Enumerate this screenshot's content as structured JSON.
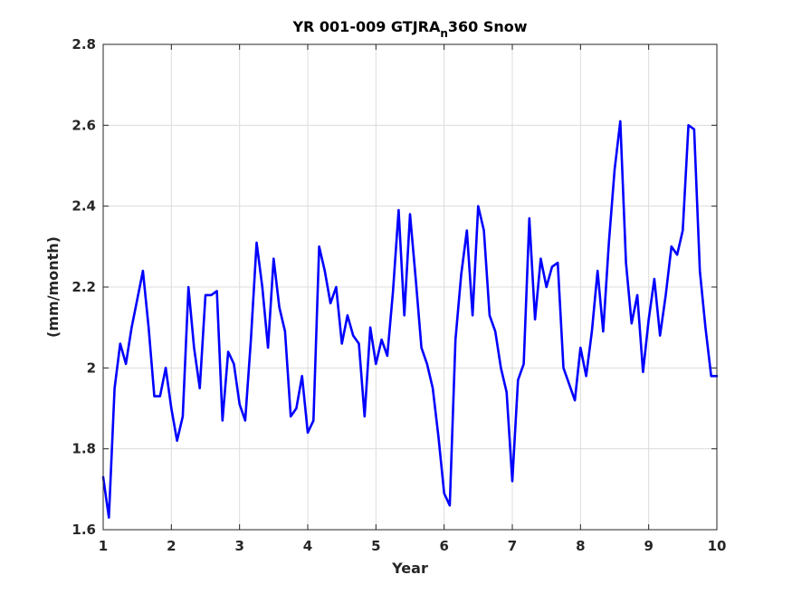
{
  "chart_data": {
    "type": "line",
    "title": "YR 001-009 GTJRA",
    "title_subscript": "n",
    "title_suffix": "360 Snow",
    "xlabel": "Year",
    "ylabel": "(mm/month)",
    "xlim": [
      1,
      10
    ],
    "ylim": [
      1.6,
      2.8
    ],
    "xticks": [
      1,
      2,
      3,
      4,
      5,
      6,
      7,
      8,
      9,
      10
    ],
    "xtick_labels": [
      "1",
      "2",
      "3",
      "4",
      "5",
      "6",
      "7",
      "8",
      "9",
      "10"
    ],
    "yticks": [
      1.6,
      1.8,
      2.0,
      2.2,
      2.4,
      2.6,
      2.8
    ],
    "ytick_labels": [
      "1.6",
      "1.8",
      "2",
      "2.2",
      "2.4",
      "2.6",
      "2.8"
    ],
    "grid": true,
    "line_color": "#0000ff",
    "series": [
      {
        "x": [
          1.0,
          1.083,
          1.167,
          1.25,
          1.333,
          1.417,
          1.5,
          1.583,
          1.667,
          1.75,
          1.833,
          1.917,
          2.0,
          2.083,
          2.167,
          2.25,
          2.333,
          2.417,
          2.5,
          2.583,
          2.667,
          2.75,
          2.833,
          2.917,
          3.0,
          3.083,
          3.167,
          3.25,
          3.333,
          3.417,
          3.5,
          3.583,
          3.667,
          3.75,
          3.833,
          3.917,
          4.0,
          4.083,
          4.167,
          4.25,
          4.333,
          4.417,
          4.5,
          4.583,
          4.667,
          4.75,
          4.833,
          4.917,
          5.0,
          5.083,
          5.167,
          5.25,
          5.333,
          5.417,
          5.5,
          5.583,
          5.667,
          5.75,
          5.833,
          5.917,
          6.0,
          6.083,
          6.167,
          6.25,
          6.333,
          6.417,
          6.5,
          6.583,
          6.667,
          6.75,
          6.833,
          6.917,
          7.0,
          7.083,
          7.167,
          7.25,
          7.333,
          7.417,
          7.5,
          7.583,
          7.667,
          7.75,
          7.833,
          7.917,
          8.0,
          8.083,
          8.167,
          8.25,
          8.333,
          8.417,
          8.5,
          8.583,
          8.667,
          8.75,
          8.833,
          8.917,
          9.0,
          9.083,
          9.167,
          9.25,
          9.333,
          9.417,
          9.5,
          9.583,
          9.667,
          9.75,
          9.833,
          9.917,
          10.0
        ],
        "y": [
          1.73,
          1.63,
          1.95,
          2.06,
          2.01,
          2.1,
          2.17,
          2.24,
          2.1,
          1.93,
          1.93,
          2.0,
          1.9,
          1.82,
          1.88,
          2.2,
          2.05,
          1.95,
          2.18,
          2.18,
          2.19,
          1.87,
          2.04,
          2.01,
          1.91,
          1.87,
          2.07,
          2.31,
          2.2,
          2.05,
          2.27,
          2.15,
          2.09,
          1.88,
          1.9,
          1.98,
          1.84,
          1.87,
          2.3,
          2.24,
          2.16,
          2.2,
          2.06,
          2.13,
          2.08,
          2.06,
          1.88,
          2.1,
          2.01,
          2.07,
          2.03,
          2.19,
          2.39,
          2.13,
          2.38,
          2.22,
          2.05,
          2.01,
          1.95,
          1.83,
          1.69,
          1.66,
          2.07,
          2.23,
          2.34,
          2.13,
          2.4,
          2.34,
          2.13,
          2.09,
          2.0,
          1.94,
          1.72,
          1.97,
          2.01,
          2.37,
          2.12,
          2.27,
          2.2,
          2.25,
          2.26,
          2.0,
          1.96,
          1.92,
          2.05,
          1.98,
          2.09,
          2.24,
          2.09,
          2.31,
          2.49,
          2.61,
          2.26,
          2.11,
          2.18,
          1.99,
          2.12,
          2.22,
          2.08,
          2.18,
          2.3,
          2.28,
          2.34,
          2.6,
          2.59,
          2.24,
          2.1,
          1.98,
          1.98
        ]
      }
    ]
  }
}
